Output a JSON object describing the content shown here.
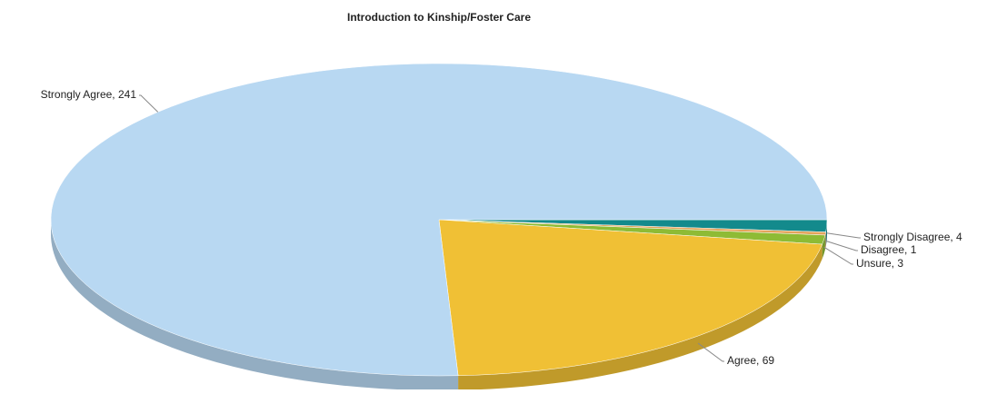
{
  "chart_data": {
    "type": "pie",
    "title": "Introduction to Kinship/Foster Care",
    "categories": [
      "Strongly Disagree",
      "Disagree",
      "Unsure",
      "Agree",
      "Strongly Agree"
    ],
    "values": [
      4,
      1,
      3,
      69,
      241
    ],
    "value_labels": [
      "Strongly Disagree, 4",
      "Disagree, 1",
      "Unsure, 3",
      "Agree, 69",
      "Strongly Agree, 241"
    ],
    "colors": [
      "#138a8c",
      "#e3a45c",
      "#8ebb35",
      "#f0c035",
      "#b8d8f2"
    ]
  }
}
